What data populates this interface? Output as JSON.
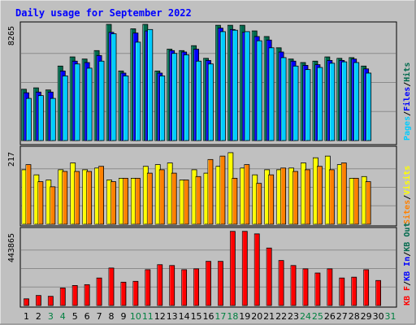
{
  "chart_data": {
    "type": "bar",
    "title": "Daily usage for September 2022",
    "categories": [
      "1",
      "2",
      "3",
      "4",
      "5",
      "6",
      "7",
      "8",
      "9",
      "10",
      "11",
      "12",
      "13",
      "14",
      "15",
      "16",
      "17",
      "18",
      "19",
      "20",
      "21",
      "22",
      "23",
      "24",
      "25",
      "26",
      "27",
      "28",
      "29",
      "30",
      "31"
    ],
    "weekend_days": [
      "3",
      "4",
      "10",
      "11",
      "17",
      "18",
      "24",
      "25",
      "31"
    ],
    "panels": [
      {
        "id": "top",
        "y_max_label": "8265",
        "ylim": [
          0,
          8265
        ],
        "legend": [
          "Pages",
          "/",
          "Files",
          "/",
          "Hits"
        ],
        "series": [
          {
            "name": "Hits",
            "color": "#006a4d",
            "values": [
              3650,
              3750,
              3600,
              5300,
              5950,
              5800,
              6400,
              8265,
              4950,
              7950,
              8265,
              4950,
              6500,
              6400,
              6750,
              5850,
              8200,
              8200,
              8200,
              7800,
              7400,
              6600,
              5800,
              5550,
              5650,
              5950,
              5850,
              5900,
              5300,
              0,
              0
            ]
          },
          {
            "name": "Files",
            "color": "#0000ff",
            "values": [
              3400,
              3450,
              3450,
              4950,
              5650,
              5550,
              6050,
              7700,
              4800,
              7650,
              7800,
              4800,
              6400,
              6300,
              6500,
              5700,
              8000,
              7900,
              7700,
              7400,
              7150,
              6300,
              5650,
              5350,
              5400,
              5700,
              5700,
              5800,
              5100,
              0,
              0
            ]
          },
          {
            "name": "Pages",
            "color": "#00ccff",
            "values": [
              3000,
              3200,
              3000,
              4600,
              5450,
              5150,
              5650,
              7600,
              4600,
              7000,
              7900,
              4600,
              6200,
              6100,
              5650,
              5450,
              7750,
              7850,
              7750,
              7100,
              6600,
              5900,
              5300,
              5050,
              5200,
              5500,
              5600,
              5550,
              4800,
              0,
              0
            ]
          }
        ]
      },
      {
        "id": "mid",
        "y_max_label": "217",
        "ylim": [
          0,
          217
        ],
        "legend": [
          "Sites",
          "/",
          "Visits"
        ],
        "series": [
          {
            "name": "Visits",
            "color": "#ffff00",
            "values": [
              160,
              145,
              130,
              160,
              180,
              160,
              165,
              130,
              135,
              135,
              170,
              175,
              180,
              130,
              160,
              150,
              170,
              210,
              165,
              145,
              160,
              160,
              165,
              180,
              195,
              200,
              175,
              135,
              140,
              0,
              0
            ]
          },
          {
            "name": "Sites",
            "color": "#ff8000",
            "values": [
              175,
              125,
              110,
              155,
              155,
              155,
              170,
              125,
              135,
              135,
              150,
              160,
              150,
              130,
              140,
              190,
              200,
              135,
              175,
              120,
              145,
              165,
              155,
              160,
              170,
              160,
              180,
              135,
              125,
              0,
              0
            ]
          }
        ]
      },
      {
        "id": "bottom",
        "y_max_label": "443865",
        "ylim": [
          0,
          443865
        ],
        "legend": [
          "KB F",
          "/",
          "KB In",
          "/",
          "KB Out"
        ],
        "series": [
          {
            "name": "KB F",
            "color": "#ff0000",
            "values": [
              40000,
              60000,
              55000,
              105000,
              120000,
              125000,
              165000,
              225000,
              140000,
              145000,
              215000,
              245000,
              240000,
              215000,
              220000,
              265000,
              265000,
              445000,
              445000,
              430000,
              345000,
              270000,
              240000,
              220000,
              195000,
              220000,
              165000,
              170000,
              215000,
              150000,
              0
            ]
          }
        ]
      }
    ]
  }
}
